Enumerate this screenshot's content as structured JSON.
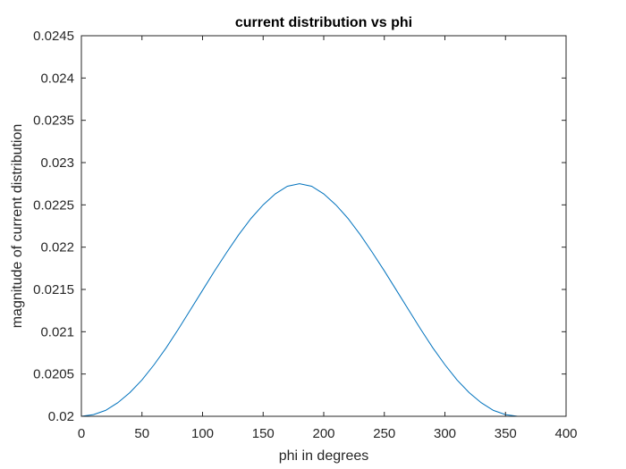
{
  "chart_data": {
    "type": "line",
    "title": "current distribution vs phi",
    "xlabel": "phi in degrees",
    "ylabel": "magnitude of current distribution",
    "xlim": [
      0,
      400
    ],
    "ylim": [
      0.02,
      0.0245
    ],
    "xticks": [
      0,
      50,
      100,
      150,
      200,
      250,
      300,
      350,
      400
    ],
    "xtick_labels": [
      "0",
      "50",
      "100",
      "150",
      "200",
      "250",
      "300",
      "350",
      "400"
    ],
    "yticks": [
      0.02,
      0.0205,
      0.021,
      0.0215,
      0.022,
      0.0225,
      0.023,
      0.0235,
      0.024,
      0.0245
    ],
    "ytick_labels": [
      "0.02",
      "0.0205",
      "0.021",
      "0.0215",
      "0.022",
      "0.0225",
      "0.023",
      "0.0235",
      "0.024",
      "0.0245"
    ],
    "grid": false,
    "legend": "none",
    "series": [
      {
        "color": "#0072BD",
        "x": [
          0,
          10,
          20,
          30,
          40,
          50,
          60,
          70,
          80,
          90,
          100,
          110,
          120,
          130,
          140,
          150,
          160,
          170,
          180,
          190,
          200,
          210,
          220,
          230,
          240,
          250,
          260,
          270,
          280,
          290,
          300,
          310,
          320,
          330,
          340,
          350,
          360
        ],
        "y": [
          0.02,
          0.02002,
          0.02007,
          0.02016,
          0.02028,
          0.02043,
          0.02061,
          0.02081,
          0.02103,
          0.02126,
          0.02149,
          0.02172,
          0.02194,
          0.02215,
          0.02234,
          0.0225,
          0.02263,
          0.02272,
          0.02275,
          0.02272,
          0.02263,
          0.0225,
          0.02234,
          0.02215,
          0.02194,
          0.02172,
          0.02149,
          0.02126,
          0.02103,
          0.02081,
          0.02061,
          0.02043,
          0.02028,
          0.02016,
          0.02007,
          0.02002,
          0.02
        ]
      }
    ]
  }
}
